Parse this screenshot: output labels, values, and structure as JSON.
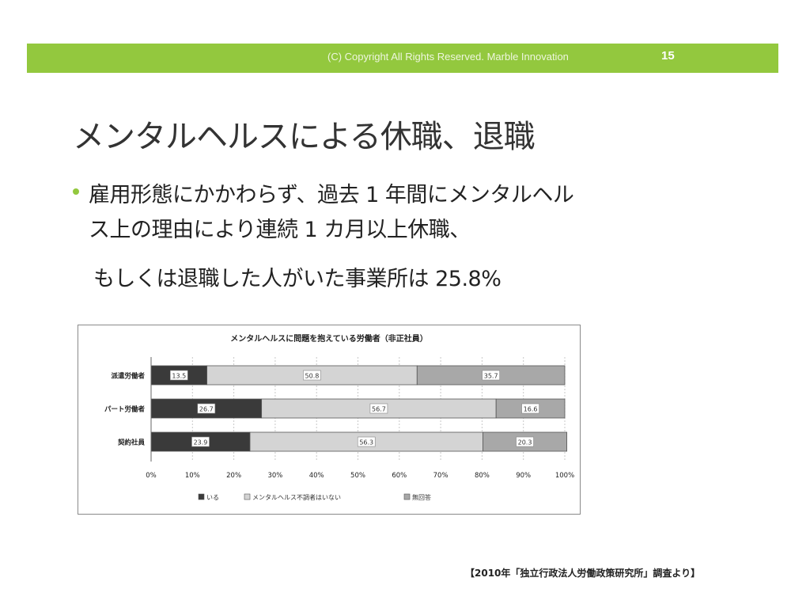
{
  "header": {
    "copyright": "(C) Copyright All Rights Reserved. Marble  Innovation",
    "page_number": "15"
  },
  "title": "メンタルヘルスによる休職、退職",
  "bullet": {
    "line1": "雇用形態にかかわらず、過去 1 年間にメンタルヘル",
    "line2": "ス上の理由により連続 1 カ月以上休職、",
    "line3": "もしくは退職した人がいた事業所は 25.8%"
  },
  "chart_data": {
    "type": "bar",
    "orientation": "horizontal",
    "stacked": "percent",
    "title": "メンタルヘルスに問題を抱えている労働者（非正社員）",
    "categories": [
      "派遣労働者",
      "パート労働者",
      "契約社員"
    ],
    "series": [
      {
        "name": "いる",
        "values": [
          13.5,
          26.7,
          23.9
        ],
        "color": "#3a3a3a"
      },
      {
        "name": "メンタルヘルス不調者はいない",
        "values": [
          50.8,
          56.7,
          56.3
        ],
        "color": "#d4d4d4"
      },
      {
        "name": "無回答",
        "values": [
          35.7,
          16.6,
          20.3
        ],
        "color": "#a8a8a8"
      }
    ],
    "value_labels": [
      [
        "13.5",
        "50.8",
        "35.7"
      ],
      [
        "26.7",
        "56.7",
        "16.6"
      ],
      [
        "23.9",
        "56.3",
        "20.3"
      ]
    ],
    "xlim": [
      0,
      100
    ],
    "xticks": [
      "0%",
      "10%",
      "20%",
      "30%",
      "40%",
      "50%",
      "60%",
      "70%",
      "80%",
      "90%",
      "100%"
    ],
    "legend_position": "bottom",
    "grid": true
  },
  "source": "【2010年「独立行政法人労働政策研究所」調査より】"
}
